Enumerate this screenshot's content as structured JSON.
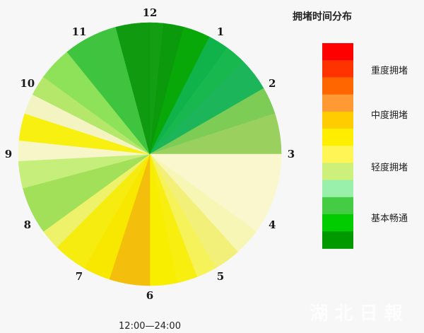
{
  "chart_data": {
    "type": "pie",
    "caption": "12:00—24:00",
    "hour_labels": [
      "12",
      "1",
      "2",
      "3",
      "4",
      "5",
      "6",
      "7",
      "8",
      "9",
      "10",
      "11"
    ],
    "segments": [
      {
        "from": 0,
        "to": 0.2,
        "color": "#12a012"
      },
      {
        "from": 0.2,
        "to": 0.5,
        "color": "#0b9a0b"
      },
      {
        "from": 0.5,
        "to": 0.9,
        "color": "#08a808"
      },
      {
        "from": 0.9,
        "to": 1.2,
        "color": "#0fb34a"
      },
      {
        "from": 1.2,
        "to": 1.5,
        "color": "#18b84e"
      },
      {
        "from": 1.5,
        "to": 2.0,
        "color": "#1db55a"
      },
      {
        "from": 2.0,
        "to": 2.4,
        "color": "#7ccc55"
      },
      {
        "from": 2.4,
        "to": 3.0,
        "color": "#9ad05e"
      },
      {
        "from": 3.0,
        "to": 4.2,
        "color": "#faf7cf"
      },
      {
        "from": 4.2,
        "to": 4.6,
        "color": "#f7f6b5"
      },
      {
        "from": 4.6,
        "to": 5.0,
        "color": "#f3f07a"
      },
      {
        "from": 5.0,
        "to": 5.3,
        "color": "#f6f35a"
      },
      {
        "from": 5.3,
        "to": 5.6,
        "color": "#f8ee10"
      },
      {
        "from": 5.6,
        "to": 6.0,
        "color": "#f7ee00"
      },
      {
        "from": 6.0,
        "to": 6.6,
        "color": "#f4bf0c"
      },
      {
        "from": 6.6,
        "to": 7.0,
        "color": "#f8e800"
      },
      {
        "from": 7.0,
        "to": 7.5,
        "color": "#f6ec10"
      },
      {
        "from": 7.5,
        "to": 7.8,
        "color": "#eef26a"
      },
      {
        "from": 7.8,
        "to": 8.5,
        "color": "#a3e05a"
      },
      {
        "from": 8.5,
        "to": 8.9,
        "color": "#c6ee7a"
      },
      {
        "from": 8.9,
        "to": 9.2,
        "color": "#f6f6c8"
      },
      {
        "from": 9.2,
        "to": 9.6,
        "color": "#f8f010"
      },
      {
        "from": 9.6,
        "to": 9.9,
        "color": "#f3f4c2"
      },
      {
        "from": 9.9,
        "to": 10.2,
        "color": "#b4e76a"
      },
      {
        "from": 10.2,
        "to": 10.7,
        "color": "#8ee25a"
      },
      {
        "from": 10.7,
        "to": 11.0,
        "color": "#3ec43e"
      },
      {
        "from": 11.0,
        "to": 11.5,
        "color": "#40c440"
      },
      {
        "from": 11.5,
        "to": 12.0,
        "color": "#109a10"
      }
    ],
    "legend": {
      "title": "拥堵时间分布",
      "colors": [
        "#ff0000",
        "#ff3300",
        "#ff6600",
        "#ff9933",
        "#ffcc00",
        "#ffee00",
        "#fff555",
        "#ccf07a",
        "#99f0aa",
        "#44cc44",
        "#00cc00",
        "#009900"
      ],
      "labels": [
        "重度拥堵",
        "中度拥堵",
        "轻度拥堵",
        "基本畅通"
      ]
    }
  },
  "watermark": "湖 北 日 報"
}
